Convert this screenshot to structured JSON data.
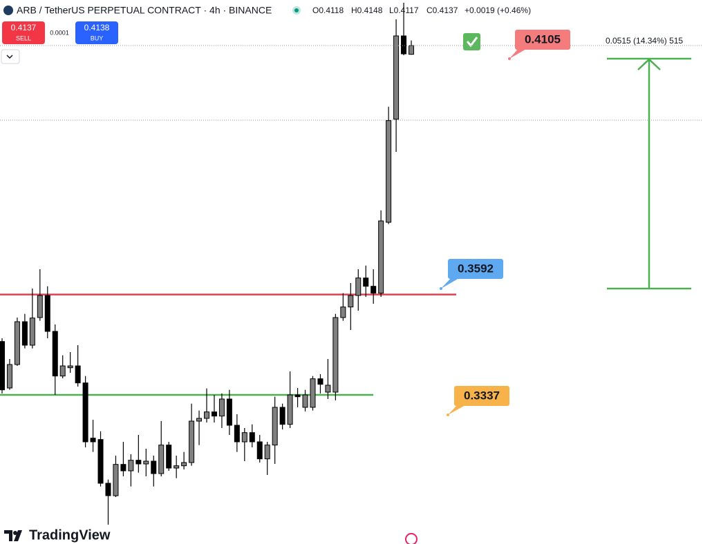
{
  "header": {
    "title": "ARB / TetherUS PERPETUAL CONTRACT · 4h · BINANCE",
    "open": "O0.4118",
    "high": "H0.4148",
    "low": "L0.4117",
    "close": "C0.4137",
    "change": "+0.0019 (+0.46%)"
  },
  "trade": {
    "sell_price": "0.4137",
    "sell": "SELL",
    "spread": "0.0001",
    "buy_price": "0.4138",
    "buy": "BUY"
  },
  "logo": "TradingView",
  "chart_data": {
    "type": "candlestick",
    "ylim": [
      0.3054,
      0.4236
    ],
    "up_color": "#808080",
    "down_color": "#000000",
    "open": [
      0.3494,
      0.3393,
      0.3444,
      0.3537,
      0.3486,
      0.3546,
      0.3594,
      0.3516,
      0.3419,
      0.3437,
      0.3441,
      0.3404,
      0.3284,
      0.3281,
      0.3186,
      0.3159,
      0.3227,
      0.3213,
      0.3236,
      0.3228,
      0.3234,
      0.3207,
      0.3269,
      0.3219,
      0.3224,
      0.3231,
      0.3321,
      0.3327,
      0.3341,
      0.3332,
      0.3369,
      0.3312,
      0.3276,
      0.3296,
      0.3276,
      0.3239,
      0.3269,
      0.3351,
      0.3314,
      0.3378,
      0.3351,
      0.3351,
      0.3413,
      0.3384,
      0.3384,
      0.3546,
      0.3569,
      0.3594,
      0.3632,
      0.3614,
      0.3599,
      0.3753,
      0.3977,
      0.4158,
      0.4118
    ],
    "high": [
      0.3501,
      0.3456,
      0.3546,
      0.3554,
      0.3609,
      0.3651,
      0.3614,
      0.3531,
      0.3464,
      0.3471,
      0.3486,
      0.3419,
      0.3324,
      0.3299,
      0.3194,
      0.3246,
      0.3276,
      0.3249,
      0.3291,
      0.3261,
      0.3246,
      0.3321,
      0.3276,
      0.3246,
      0.3254,
      0.3359,
      0.3344,
      0.3392,
      0.3378,
      0.3381,
      0.3389,
      0.3336,
      0.3306,
      0.3314,
      0.3291,
      0.3276,
      0.3374,
      0.3359,
      0.3429,
      0.3393,
      0.3389,
      0.3419,
      0.3423,
      0.3456,
      0.3554,
      0.3599,
      0.3621,
      0.3651,
      0.3659,
      0.3651,
      0.3779,
      0.4004,
      0.4194,
      0.423,
      0.4148
    ],
    "low": [
      0.3381,
      0.3389,
      0.3441,
      0.3479,
      0.3479,
      0.3539,
      0.3501,
      0.3378,
      0.3414,
      0.3426,
      0.3396,
      0.3264,
      0.3254,
      0.3179,
      0.3096,
      0.3156,
      0.3201,
      0.3179,
      0.3209,
      0.3201,
      0.3179,
      0.3201,
      0.3213,
      0.3197,
      0.3216,
      0.3224,
      0.3269,
      0.3318,
      0.3318,
      0.3306,
      0.3291,
      0.3254,
      0.3234,
      0.3264,
      0.3231,
      0.3204,
      0.3228,
      0.3303,
      0.3306,
      0.3351,
      0.3342,
      0.3344,
      0.3381,
      0.3369,
      0.3366,
      0.3539,
      0.3519,
      0.3561,
      0.3591,
      0.3576,
      0.3591,
      0.3749,
      0.3906,
      0.4116,
      0.4117
    ],
    "close": [
      0.3389,
      0.3444,
      0.3537,
      0.3486,
      0.3545,
      0.3594,
      0.3516,
      0.3419,
      0.3441,
      0.3441,
      0.3404,
      0.3276,
      0.3276,
      0.3186,
      0.3159,
      0.3227,
      0.3213,
      0.3236,
      0.3228,
      0.3234,
      0.3207,
      0.3269,
      0.3219,
      0.3224,
      0.3231,
      0.3321,
      0.3327,
      0.3341,
      0.3332,
      0.3369,
      0.3312,
      0.3276,
      0.3296,
      0.3276,
      0.3239,
      0.3269,
      0.3351,
      0.3314,
      0.3378,
      0.3374,
      0.3378,
      0.3413,
      0.3401,
      0.3399,
      0.3546,
      0.3569,
      0.3594,
      0.3632,
      0.3614,
      0.3599,
      0.3756,
      0.3974,
      0.4158,
      0.4119,
      0.4137
    ],
    "levels": [
      {
        "value": 0.3596,
        "color": "#e0404f"
      },
      {
        "value": 0.3378,
        "color": "#4caf50"
      }
    ],
    "price_labels": [
      {
        "text": "0.4105",
        "color": "#f47c7c"
      },
      {
        "text": "0.3592",
        "color": "#5ea9f0"
      },
      {
        "text": "0.3337",
        "color": "#f7b24a"
      }
    ],
    "measure": "0.0515 (14.34%) 515"
  }
}
